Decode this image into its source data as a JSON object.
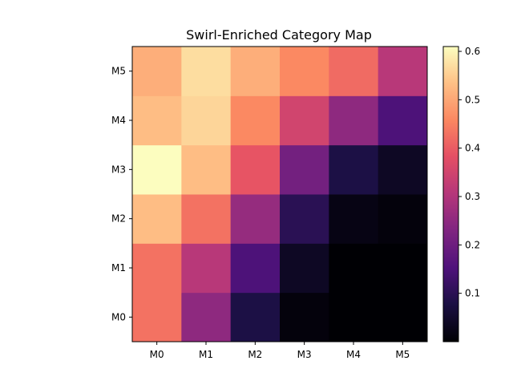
{
  "chart_data": {
    "type": "heatmap",
    "title": "Swirl-Enriched Category Map",
    "xlabel": "",
    "ylabel": "",
    "x_categories": [
      "M0",
      "M1",
      "M2",
      "M3",
      "M4",
      "M5"
    ],
    "y_categories": [
      "M0",
      "M1",
      "M2",
      "M3",
      "M4",
      "M5"
    ],
    "colormap": "magma",
    "colorbar": {
      "range": [
        0.0,
        0.61
      ],
      "ticks": [
        0.1,
        0.2,
        0.3,
        0.4,
        0.5,
        0.6
      ]
    },
    "grid": false,
    "values_by_row": [
      {
        "row": "M0",
        "values": [
          0.43,
          0.25,
          0.08,
          0.01,
          0.0,
          0.0
        ]
      },
      {
        "row": "M1",
        "values": [
          0.43,
          0.31,
          0.15,
          0.04,
          0.0,
          0.0
        ]
      },
      {
        "row": "M2",
        "values": [
          0.53,
          0.43,
          0.26,
          0.1,
          0.02,
          0.01
        ]
      },
      {
        "row": "M3",
        "values": [
          0.61,
          0.53,
          0.39,
          0.21,
          0.08,
          0.04
        ]
      },
      {
        "row": "M4",
        "values": [
          0.53,
          0.56,
          0.46,
          0.35,
          0.25,
          0.15
        ]
      },
      {
        "row": "M5",
        "values": [
          0.51,
          0.57,
          0.51,
          0.46,
          0.42,
          0.31
        ]
      }
    ]
  }
}
